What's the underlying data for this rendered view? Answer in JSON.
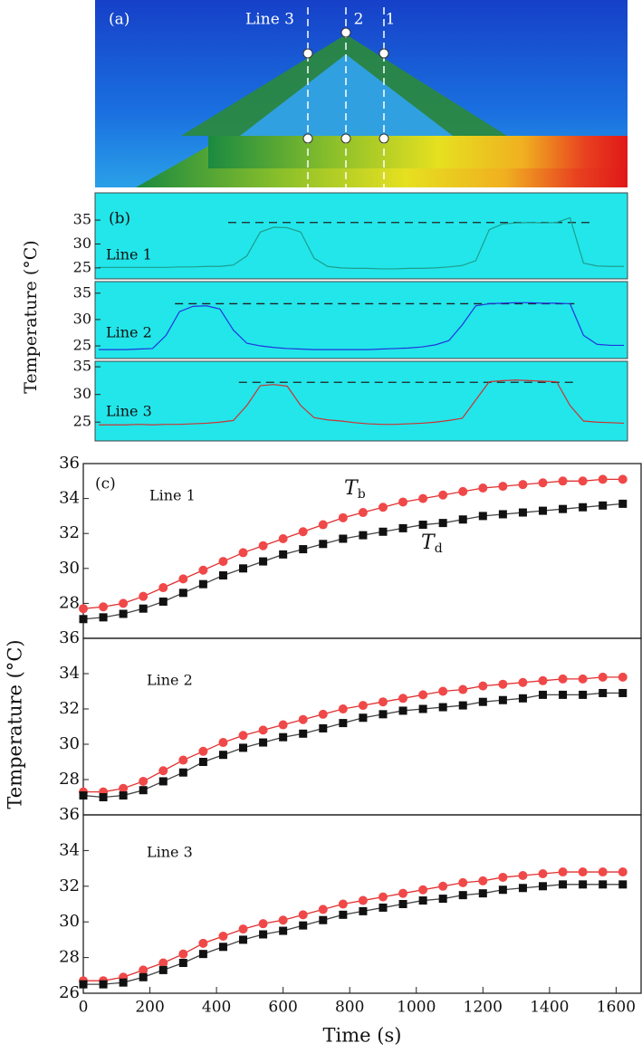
{
  "panel_a": {
    "label": "(a)",
    "line_labels": [
      "Line 3",
      "2",
      "1"
    ]
  },
  "panel_b": {
    "ylabel": "Temperature (°C)"
  },
  "panel_c": {
    "ylabel": "Temperature (°C)",
    "xlabel": "Time (s)"
  },
  "chart_data": [
    {
      "type": "trace",
      "panel_label": "(b)",
      "annotation": "Line 1",
      "ylim": [
        22.7,
        40.7
      ],
      "yticks": [
        25,
        30,
        35
      ],
      "reference_level": 34.5,
      "color": "#1e9e8e",
      "values": [
        25.1,
        25.1,
        25.1,
        25.1,
        25.1,
        25.1,
        25.2,
        25.2,
        25.3,
        25.3,
        25.6,
        27.5,
        32.5,
        33.5,
        33.4,
        32.5,
        27,
        25.3,
        25,
        24.9,
        24.9,
        24.8,
        24.8,
        24.9,
        24.9,
        25,
        25.2,
        25.5,
        26.5,
        33,
        34.2,
        34.4,
        34.5,
        34.4,
        34.5,
        35.5,
        26,
        25.4,
        25.3,
        25.3
      ]
    },
    {
      "type": "trace",
      "annotation": "Line 2",
      "ylim": [
        22.6,
        37.2
      ],
      "yticks": [
        25,
        30,
        35
      ],
      "reference_level": 33,
      "color": "#2233dd",
      "values": [
        24.3,
        24.3,
        24.3,
        24.4,
        24.5,
        27,
        31.5,
        32.5,
        32.6,
        32,
        28,
        25.5,
        25,
        24.7,
        24.5,
        24.4,
        24.3,
        24.3,
        24.3,
        24.3,
        24.3,
        24.4,
        24.5,
        24.6,
        24.8,
        25.2,
        26,
        29,
        32.6,
        33,
        33.1,
        33.2,
        33.2,
        33.1,
        33.1,
        33,
        27,
        25.3,
        25.1,
        25.1
      ]
    },
    {
      "type": "trace",
      "annotation": "Line 3",
      "ylim": [
        21.6,
        36
      ],
      "yticks": [
        25,
        30,
        35
      ],
      "reference_level": 32.2,
      "color": "#cc3333",
      "values": [
        24.5,
        24.5,
        24.5,
        24.6,
        24.5,
        24.6,
        24.6,
        24.7,
        24.8,
        25,
        25.3,
        28,
        31.6,
        31.8,
        31.5,
        28,
        25.8,
        25.4,
        25.2,
        24.9,
        24.7,
        24.6,
        24.6,
        24.7,
        24.8,
        25,
        25.3,
        25.7,
        29,
        32.3,
        32.5,
        32.6,
        32.5,
        32.4,
        32.3,
        28,
        25.2,
        25,
        24.9,
        24.8
      ]
    },
    {
      "type": "line",
      "panel_label": "(c)",
      "annotation": "Line 1",
      "xlim": [
        0,
        1675
      ],
      "ylim": [
        26,
        36
      ],
      "yticks": [
        28,
        30,
        32,
        34,
        36
      ],
      "x": [
        0,
        60,
        120,
        180,
        240,
        300,
        360,
        420,
        480,
        540,
        600,
        660,
        720,
        780,
        840,
        900,
        960,
        1020,
        1080,
        1140,
        1200,
        1260,
        1320,
        1380,
        1440,
        1500,
        1560,
        1620
      ],
      "series": [
        {
          "name": "Tb",
          "color": "#f04848",
          "marker": "circle",
          "values": [
            27.7,
            27.8,
            28.0,
            28.4,
            28.9,
            29.4,
            29.9,
            30.4,
            30.9,
            31.3,
            31.7,
            32.1,
            32.5,
            32.9,
            33.2,
            33.5,
            33.8,
            34.0,
            34.2,
            34.4,
            34.6,
            34.7,
            34.8,
            34.9,
            35.0,
            35.0,
            35.1,
            35.1
          ]
        },
        {
          "name": "Td",
          "color": "#111111",
          "marker": "square",
          "values": [
            27.1,
            27.2,
            27.4,
            27.7,
            28.1,
            28.6,
            29.1,
            29.6,
            30.0,
            30.4,
            30.8,
            31.1,
            31.4,
            31.7,
            31.9,
            32.1,
            32.3,
            32.5,
            32.6,
            32.8,
            33.0,
            33.1,
            33.2,
            33.3,
            33.4,
            33.5,
            33.6,
            33.7
          ]
        }
      ]
    },
    {
      "type": "line",
      "annotation": "Line 2",
      "xlim": [
        0,
        1675
      ],
      "ylim": [
        26,
        36
      ],
      "yticks": [
        28,
        30,
        32,
        34,
        36
      ],
      "x": [
        0,
        60,
        120,
        180,
        240,
        300,
        360,
        420,
        480,
        540,
        600,
        660,
        720,
        780,
        840,
        900,
        960,
        1020,
        1080,
        1140,
        1200,
        1260,
        1320,
        1380,
        1440,
        1500,
        1560,
        1620
      ],
      "series": [
        {
          "color": "#f04848",
          "marker": "circle",
          "values": [
            27.3,
            27.3,
            27.5,
            27.9,
            28.5,
            29.1,
            29.6,
            30.1,
            30.5,
            30.8,
            31.1,
            31.4,
            31.7,
            32.0,
            32.2,
            32.4,
            32.6,
            32.8,
            33.0,
            33.1,
            33.3,
            33.4,
            33.5,
            33.6,
            33.7,
            33.7,
            33.8,
            33.8
          ]
        },
        {
          "color": "#111111",
          "marker": "square",
          "values": [
            27.1,
            27.0,
            27.1,
            27.4,
            27.9,
            28.4,
            29.0,
            29.4,
            29.8,
            30.1,
            30.4,
            30.6,
            30.9,
            31.2,
            31.5,
            31.7,
            31.9,
            32.0,
            32.1,
            32.2,
            32.4,
            32.5,
            32.6,
            32.8,
            32.8,
            32.8,
            32.9,
            32.9
          ]
        }
      ]
    },
    {
      "type": "line",
      "annotation": "Line 3",
      "xlim": [
        0,
        1675
      ],
      "ylim": [
        26,
        36
      ],
      "yticks": [
        26,
        28,
        30,
        32,
        34,
        36
      ],
      "xticks": [
        0,
        200,
        400,
        600,
        800,
        1000,
        1200,
        1400,
        1600
      ],
      "x": [
        0,
        60,
        120,
        180,
        240,
        300,
        360,
        420,
        480,
        540,
        600,
        660,
        720,
        780,
        840,
        900,
        960,
        1020,
        1080,
        1140,
        1200,
        1260,
        1320,
        1380,
        1440,
        1500,
        1560,
        1620
      ],
      "series": [
        {
          "color": "#f04848",
          "marker": "circle",
          "values": [
            26.7,
            26.7,
            26.9,
            27.3,
            27.7,
            28.2,
            28.8,
            29.2,
            29.6,
            29.9,
            30.1,
            30.4,
            30.7,
            31.0,
            31.2,
            31.4,
            31.6,
            31.8,
            32.0,
            32.2,
            32.3,
            32.5,
            32.6,
            32.7,
            32.8,
            32.8,
            32.8,
            32.8
          ]
        },
        {
          "color": "#111111",
          "marker": "square",
          "values": [
            26.5,
            26.5,
            26.6,
            26.9,
            27.3,
            27.7,
            28.2,
            28.6,
            29.0,
            29.3,
            29.5,
            29.8,
            30.1,
            30.4,
            30.6,
            30.8,
            31.0,
            31.2,
            31.3,
            31.5,
            31.6,
            31.8,
            31.9,
            32.0,
            32.1,
            32.1,
            32.1,
            32.1
          ]
        }
      ]
    }
  ]
}
